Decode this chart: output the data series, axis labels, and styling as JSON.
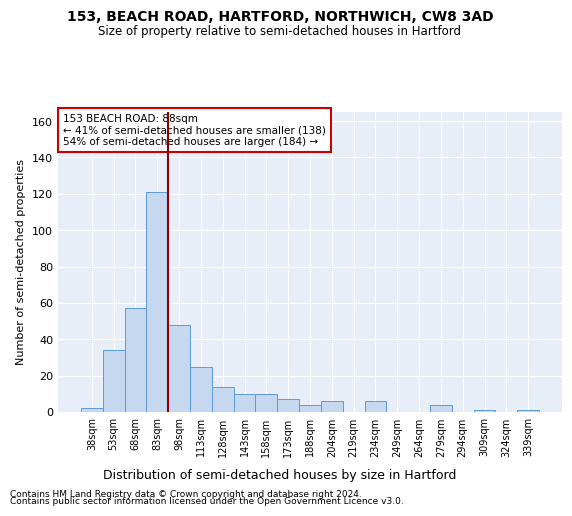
{
  "title": "153, BEACH ROAD, HARTFORD, NORTHWICH, CW8 3AD",
  "subtitle": "Size of property relative to semi-detached houses in Hartford",
  "xlabel": "Distribution of semi-detached houses by size in Hartford",
  "ylabel": "Number of semi-detached properties",
  "footnote1": "Contains HM Land Registry data © Crown copyright and database right 2024.",
  "footnote2": "Contains public sector information licensed under the Open Government Licence v3.0.",
  "annotation_title": "153 BEACH ROAD: 88sqm",
  "annotation_line1": "← 41% of semi-detached houses are smaller (138)",
  "annotation_line2": "54% of semi-detached houses are larger (184) →",
  "bar_color": "#c5d8f0",
  "bar_edge_color": "#5b9bd5",
  "vline_color": "#8b0000",
  "annotation_box_color": "#ffffff",
  "annotation_box_edge": "#cc0000",
  "background_color": "#e8eef8",
  "grid_color": "#ffffff",
  "categories": [
    "38sqm",
    "53sqm",
    "68sqm",
    "83sqm",
    "98sqm",
    "113sqm",
    "128sqm",
    "143sqm",
    "158sqm",
    "173sqm",
    "188sqm",
    "204sqm",
    "219sqm",
    "234sqm",
    "249sqm",
    "264sqm",
    "279sqm",
    "294sqm",
    "309sqm",
    "324sqm",
    "339sqm"
  ],
  "values": [
    2,
    34,
    57,
    121,
    48,
    25,
    14,
    10,
    10,
    7,
    4,
    6,
    0,
    6,
    0,
    0,
    4,
    0,
    1,
    0,
    1
  ],
  "vline_x": 3.5,
  "ylim": [
    0,
    165
  ],
  "yticks": [
    0,
    20,
    40,
    60,
    80,
    100,
    120,
    140,
    160
  ]
}
